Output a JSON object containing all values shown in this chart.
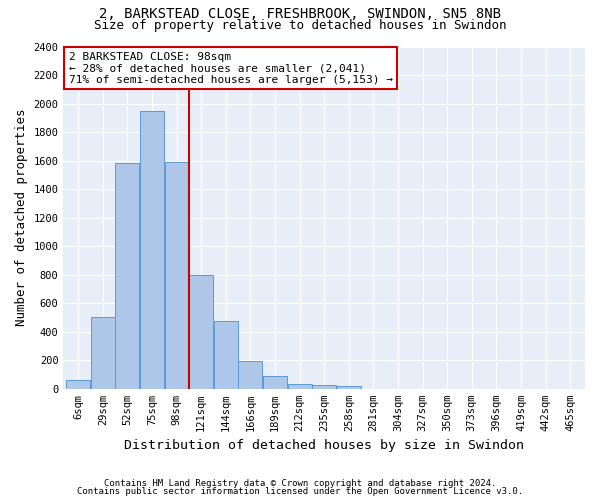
{
  "title_line1": "2, BARKSTEAD CLOSE, FRESHBROOK, SWINDON, SN5 8NB",
  "title_line2": "Size of property relative to detached houses in Swindon",
  "xlabel": "Distribution of detached houses by size in Swindon",
  "ylabel": "Number of detached properties",
  "categories": [
    "6sqm",
    "29sqm",
    "52sqm",
    "75sqm",
    "98sqm",
    "121sqm",
    "144sqm",
    "166sqm",
    "189sqm",
    "212sqm",
    "235sqm",
    "258sqm",
    "281sqm",
    "304sqm",
    "327sqm",
    "350sqm",
    "373sqm",
    "396sqm",
    "419sqm",
    "442sqm",
    "465sqm"
  ],
  "bar_values": [
    60,
    500,
    1580,
    1950,
    1590,
    800,
    475,
    195,
    90,
    35,
    25,
    20,
    0,
    0,
    0,
    0,
    0,
    0,
    0,
    0,
    0
  ],
  "bar_color": "#aec6e8",
  "bar_edge_color": "#5b9bd5",
  "vline_idx": 4,
  "vline_color": "#cc0000",
  "annotation_text": "2 BARKSTEAD CLOSE: 98sqm\n← 28% of detached houses are smaller (2,041)\n71% of semi-detached houses are larger (5,153) →",
  "annotation_box_color": "#ffffff",
  "annotation_box_edge_color": "#cc0000",
  "footnote_line1": "Contains HM Land Registry data © Crown copyright and database right 2024.",
  "footnote_line2": "Contains public sector information licensed under the Open Government Licence v3.0.",
  "ylim": [
    0,
    2400
  ],
  "yticks": [
    0,
    200,
    400,
    600,
    800,
    1000,
    1200,
    1400,
    1600,
    1800,
    2000,
    2200,
    2400
  ],
  "background_color": "#e8eef8",
  "fig_background_color": "#ffffff",
  "grid_color": "#ffffff",
  "title_fontsize": 10,
  "subtitle_fontsize": 9,
  "label_fontsize": 9,
  "tick_fontsize": 7.5,
  "footnote_fontsize": 6.5
}
